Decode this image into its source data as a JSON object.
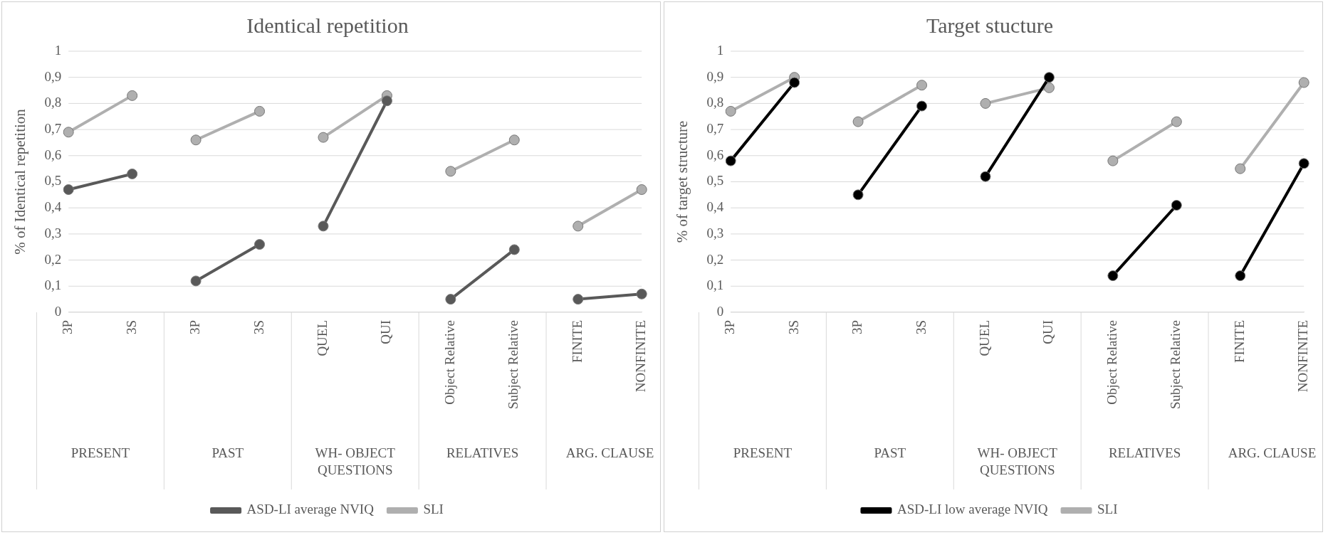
{
  "chart_data": [
    {
      "type": "line",
      "title": "Identical repetition",
      "ylabel": "% of Identical repetition",
      "categories": [
        "3P",
        "3S",
        "3P",
        "3S",
        "QUEL",
        "QUI",
        "Object Relative",
        "Subject Relative",
        "FINITE",
        "NONFINITE"
      ],
      "annotations": [
        "PRESENT",
        "PAST",
        "WH- OBJECT QUESTIONS",
        "RELATIVES",
        "ARG. CLAUSE"
      ],
      "series": [
        {
          "name": "ASD-LI average NVIQ",
          "color": "#595959",
          "values": [
            0.47,
            0.53,
            0.12,
            0.26,
            0.33,
            0.81,
            0.05,
            0.24,
            0.05,
            0.07
          ]
        },
        {
          "name": "SLI",
          "color": "#afafaf",
          "values": [
            0.69,
            0.83,
            0.66,
            0.77,
            0.67,
            0.83,
            0.54,
            0.66,
            0.33,
            0.47
          ]
        }
      ],
      "ylim": [
        0,
        1
      ],
      "yticks": [
        {
          "value": 0,
          "label": "0"
        },
        {
          "value": 0.1,
          "label": "0,1"
        },
        {
          "value": 0.2,
          "label": "0,2"
        },
        {
          "value": 0.3,
          "label": "0,3"
        },
        {
          "value": 0.4,
          "label": "0,4"
        },
        {
          "value": 0.5,
          "label": "0,5"
        },
        {
          "value": 0.6,
          "label": "0,6"
        },
        {
          "value": 0.7,
          "label": "0,7"
        },
        {
          "value": 0.8,
          "label": "0,8"
        },
        {
          "value": 0.9,
          "label": "0,9"
        },
        {
          "value": 1,
          "label": "1"
        }
      ],
      "grid": "y",
      "legend": "bottom",
      "marker": "circle",
      "line_style": "solid"
    },
    {
      "type": "line",
      "title": "Target stucture",
      "ylabel": "% of target structure",
      "categories": [
        "3P",
        "3S",
        "3P",
        "3S",
        "QUEL",
        "QUI",
        "Object Relative",
        "Subject Relative",
        "FINITE",
        "NONFINITE"
      ],
      "annotations": [
        "PRESENT",
        "PAST",
        "WH- OBJECT QUESTIONS",
        "RELATIVES",
        "ARG. CLAUSE"
      ],
      "series": [
        {
          "name": "ASD-LI low average NVIQ",
          "color": "#000000",
          "values": [
            0.58,
            0.88,
            0.45,
            0.79,
            0.52,
            0.9,
            0.14,
            0.41,
            0.14,
            0.57
          ]
        },
        {
          "name": "SLI",
          "color": "#afafaf",
          "values": [
            0.77,
            0.9,
            0.73,
            0.87,
            0.8,
            0.86,
            0.58,
            0.73,
            0.55,
            0.88
          ]
        }
      ],
      "ylim": [
        0,
        1
      ],
      "yticks": [
        {
          "value": 0,
          "label": "0"
        },
        {
          "value": 0.1,
          "label": "0,1"
        },
        {
          "value": 0.2,
          "label": "0,2"
        },
        {
          "value": 0.3,
          "label": "0,3"
        },
        {
          "value": 0.4,
          "label": "0,4"
        },
        {
          "value": 0.5,
          "label": "0,5"
        },
        {
          "value": 0.6,
          "label": "0,6"
        },
        {
          "value": 0.7,
          "label": "0,7"
        },
        {
          "value": 0.8,
          "label": "0,8"
        },
        {
          "value": 0.9,
          "label": "0,9"
        },
        {
          "value": 1,
          "label": "1"
        }
      ],
      "grid": "y",
      "legend": "bottom",
      "marker": "circle",
      "line_style": "solid"
    }
  ]
}
